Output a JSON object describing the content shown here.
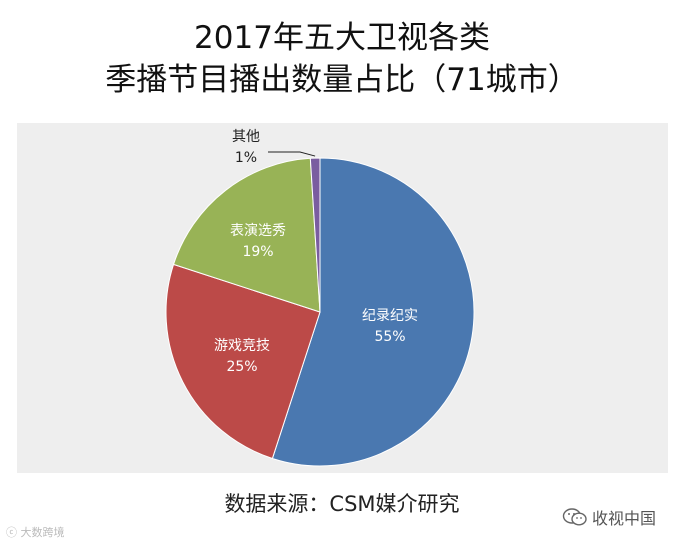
{
  "title_line1": "2017年五大卫视各类",
  "title_line2": "季播节目播出数量占比（71城市）",
  "source": "数据来源：CSM媒介研究",
  "watermark_left": "大数跨境",
  "watermark_right": "收视中国",
  "icons": {
    "watermark_right": "wechat-icon",
    "watermark_left": "logo-icon"
  },
  "chart_data": {
    "type": "pie",
    "title": "2017年五大卫视各类季播节目播出数量占比（71城市）",
    "slices": [
      {
        "label": "纪录纪实",
        "value": 55,
        "value_label": "55%",
        "color": "#4a78b0"
      },
      {
        "label": "游戏竞技",
        "value": 25,
        "value_label": "25%",
        "color": "#bc4a48"
      },
      {
        "label": "表演选秀",
        "value": 19,
        "value_label": "19%",
        "color": "#98b356"
      },
      {
        "label": "其他",
        "value": 1,
        "value_label": "1%",
        "color": "#7a5da0"
      }
    ]
  }
}
